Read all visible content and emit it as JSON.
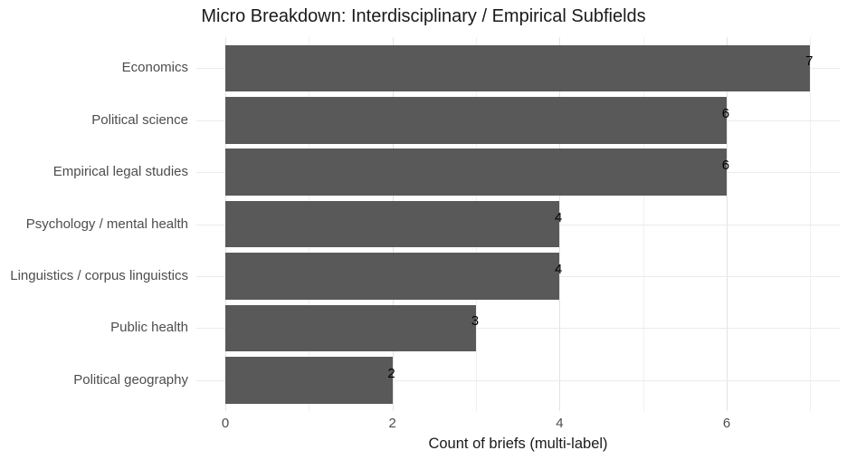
{
  "chart_data": {
    "type": "bar",
    "orientation": "horizontal",
    "title": "Micro Breakdown: Interdisciplinary / Empirical Subfields",
    "categories": [
      "Economics",
      "Political science",
      "Empirical legal studies",
      "Psychology / mental health",
      "Linguistics / corpus linguistics",
      "Public health",
      "Political geography"
    ],
    "values": [
      7,
      6,
      6,
      4,
      4,
      3,
      2
    ],
    "value_labels": [
      "7",
      "6",
      "6",
      "4",
      "4",
      "3",
      "2"
    ],
    "xlabel": "Count of briefs (multi-label)",
    "ylabel": "",
    "xlim": [
      -0.35,
      7.35
    ],
    "x_major_ticks": [
      {
        "value": 0,
        "label": "0"
      },
      {
        "value": 2,
        "label": "2"
      },
      {
        "value": 4,
        "label": "4"
      },
      {
        "value": 6,
        "label": "6"
      }
    ],
    "x_minor_ticks": [
      1,
      3,
      5,
      7
    ],
    "grid": true,
    "legend_position": "none",
    "colors": {
      "bar_fill": "#595959",
      "value_label": "#000000",
      "axis_text": "#4d4d4d",
      "title_text": "#1a1a1a",
      "grid_major": "#e3e3e3",
      "grid_minor": "#f0f0f0",
      "grid_row": "#ebebeb",
      "background": "#ffffff"
    }
  }
}
